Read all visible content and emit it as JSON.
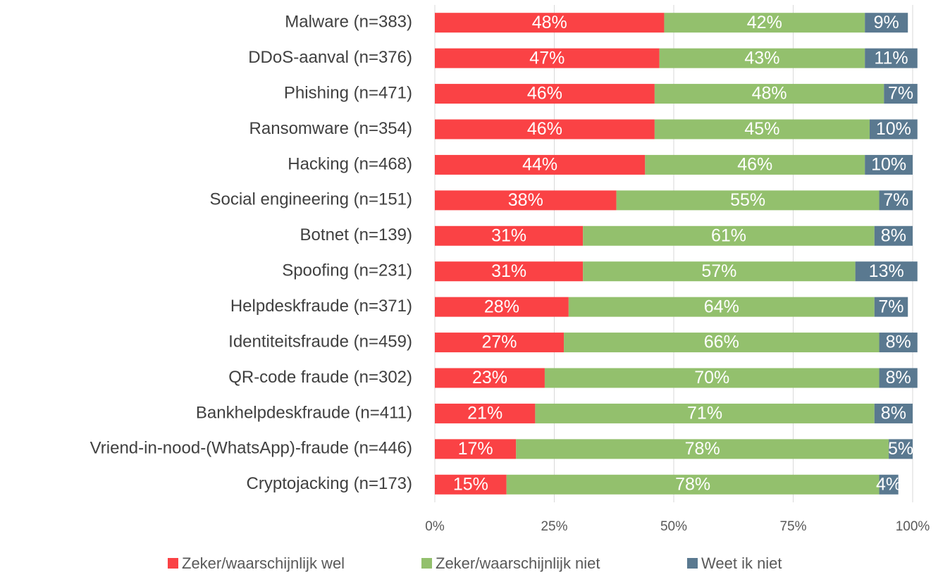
{
  "chart_data": {
    "type": "stacked_bar_horizontal",
    "categories": [
      "Malware (n=383)",
      "DDoS-aanval (n=376)",
      "Phishing (n=471)",
      "Ransomware (n=354)",
      "Hacking (n=468)",
      "Social engineering (n=151)",
      "Botnet (n=139)",
      "Spoofing (n=231)",
      "Helpdeskfraude (n=371)",
      "Identiteitsfraude (n=459)",
      "QR-code fraude (n=302)",
      "Bankhelpdeskfraude (n=411)",
      "Vriend-in-nood-(WhatsApp)-fraude (n=446)",
      "Cryptojacking (n=173)"
    ],
    "series": [
      {
        "name": "Zeker/waarschijnlijk wel",
        "color": "#fa4245",
        "values": [
          48,
          47,
          46,
          46,
          44,
          38,
          31,
          31,
          28,
          27,
          23,
          21,
          17,
          15
        ],
        "value_labels": [
          "48%",
          "47%",
          "46%",
          "46%",
          "44%",
          "38%",
          "31%",
          "31%",
          "28%",
          "27%",
          "23%",
          "21%",
          "17%",
          "15%"
        ]
      },
      {
        "name": "Zeker/waarschijnlijk niet",
        "color": "#93c06d",
        "values": [
          42,
          43,
          48,
          45,
          46,
          55,
          61,
          57,
          64,
          66,
          70,
          71,
          78,
          78
        ],
        "value_labels": [
          "42%",
          "43%",
          "48%",
          "45%",
          "46%",
          "55%",
          "61%",
          "57%",
          "64%",
          "66%",
          "70%",
          "71%",
          "78%",
          "78%"
        ]
      },
      {
        "name": "Weet ik niet",
        "color": "#5a7990",
        "values": [
          9,
          11,
          7,
          10,
          10,
          7,
          8,
          13,
          7,
          8,
          8,
          8,
          5,
          4
        ],
        "value_labels": [
          "9%",
          "11%",
          "7%",
          "10%",
          "10%",
          "7%",
          "8%",
          "13%",
          "7%",
          "8%",
          "8%",
          "8%",
          "5%",
          "4%"
        ]
      }
    ],
    "xlim": [
      0,
      100
    ],
    "xticks": [
      {
        "value": 0,
        "label": "0%"
      },
      {
        "value": 25,
        "label": "25%"
      },
      {
        "value": 50,
        "label": "50%"
      },
      {
        "value": 75,
        "label": "75%"
      },
      {
        "value": 100,
        "label": "100%"
      }
    ],
    "grid": true,
    "legend": "bottom"
  }
}
